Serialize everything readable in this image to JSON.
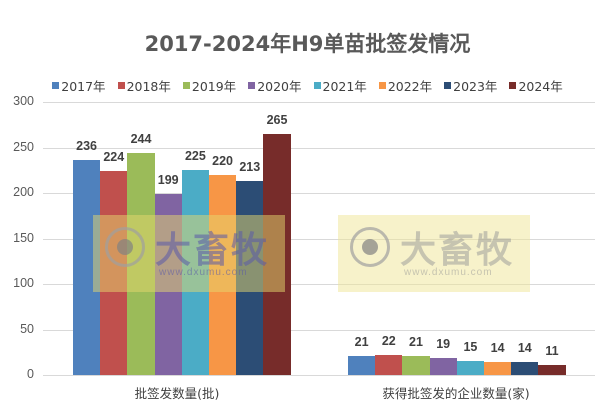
{
  "chart_data": {
    "type": "bar",
    "title": "2017-2024年H9单苗批签发情况",
    "categories": [
      "批签发数量(批)",
      "获得批签发的企业数量(家)"
    ],
    "series": [
      {
        "name": "2017年",
        "color": "#4F81BD",
        "values": [
          236,
          21
        ]
      },
      {
        "name": "2018年",
        "color": "#C0504D",
        "values": [
          224,
          22
        ]
      },
      {
        "name": "2019年",
        "color": "#9BBB59",
        "values": [
          244,
          21
        ]
      },
      {
        "name": "2020年",
        "color": "#8064A2",
        "values": [
          199,
          19
        ]
      },
      {
        "name": "2021年",
        "color": "#4BACC6",
        "values": [
          225,
          15
        ]
      },
      {
        "name": "2022年",
        "color": "#F79646",
        "values": [
          220,
          14
        ]
      },
      {
        "name": "2023年",
        "color": "#2C4D75",
        "values": [
          213,
          14
        ]
      },
      {
        "name": "2024年",
        "color": "#772C2A",
        "values": [
          265,
          11
        ]
      }
    ],
    "xlabel": "",
    "ylabel": "",
    "ylim": [
      0,
      300
    ],
    "yticks": [
      "0",
      "50",
      "100",
      "150",
      "200",
      "250",
      "300"
    ],
    "grid": true,
    "legend_position": "top"
  },
  "watermark": {
    "brand": "大畜牧",
    "url": "www.dxumu.com"
  }
}
